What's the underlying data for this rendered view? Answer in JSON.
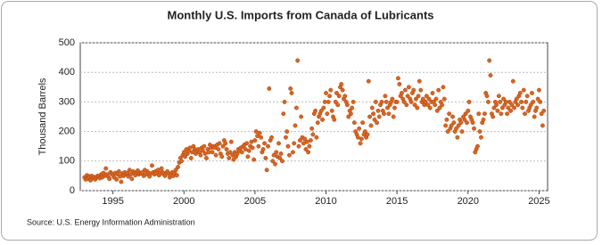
{
  "chart_data": {
    "type": "scatter",
    "title": "Monthly U.S. Imports from Canada of Lubricants",
    "y_label": "Thousand Barrels",
    "source": "Source: U.S. Energy Information Administration",
    "color": "#d9661f",
    "grid": true,
    "xlim": [
      1992.7,
      2025.6
    ],
    "xticks": [
      1995,
      2000,
      2005,
      2010,
      2015,
      2020,
      2025
    ],
    "ylim": [
      0,
      500
    ],
    "yticks": [
      0,
      100,
      200,
      300,
      400,
      500
    ],
    "x": [
      1993,
      1993.08,
      1993.17,
      1993.25,
      1993.33,
      1993.42,
      1993.5,
      1993.58,
      1993.67,
      1993.75,
      1993.83,
      1993.92,
      1994,
      1994.08,
      1994.17,
      1994.25,
      1994.33,
      1994.42,
      1994.5,
      1994.58,
      1994.67,
      1994.75,
      1994.83,
      1994.92,
      1995,
      1995.08,
      1995.17,
      1995.25,
      1995.33,
      1995.42,
      1995.5,
      1995.58,
      1995.67,
      1995.75,
      1995.83,
      1995.92,
      1996,
      1996.08,
      1996.17,
      1996.25,
      1996.33,
      1996.42,
      1996.5,
      1996.58,
      1996.67,
      1996.75,
      1996.83,
      1996.92,
      1997,
      1997.08,
      1997.17,
      1997.25,
      1997.33,
      1997.42,
      1997.5,
      1997.58,
      1997.67,
      1997.75,
      1997.83,
      1997.92,
      1998,
      1998.08,
      1998.17,
      1998.25,
      1998.33,
      1998.42,
      1998.5,
      1998.58,
      1998.67,
      1998.75,
      1998.83,
      1998.92,
      1999,
      1999.08,
      1999.17,
      1999.25,
      1999.33,
      1999.42,
      1999.5,
      1999.58,
      1999.67,
      1999.75,
      1999.83,
      1999.92,
      2000,
      2000.08,
      2000.17,
      2000.25,
      2000.33,
      2000.42,
      2000.5,
      2000.58,
      2000.67,
      2000.75,
      2000.83,
      2000.92,
      2001,
      2001.08,
      2001.17,
      2001.25,
      2001.33,
      2001.42,
      2001.5,
      2001.58,
      2001.67,
      2001.75,
      2001.83,
      2001.92,
      2002,
      2002.08,
      2002.17,
      2002.25,
      2002.33,
      2002.42,
      2002.5,
      2002.58,
      2002.67,
      2002.75,
      2002.83,
      2002.92,
      2003,
      2003.08,
      2003.17,
      2003.25,
      2003.33,
      2003.42,
      2003.5,
      2003.58,
      2003.67,
      2003.75,
      2003.83,
      2003.92,
      2004,
      2004.08,
      2004.17,
      2004.25,
      2004.33,
      2004.42,
      2004.5,
      2004.58,
      2004.67,
      2004.75,
      2004.83,
      2004.92,
      2005,
      2005.08,
      2005.17,
      2005.25,
      2005.33,
      2005.42,
      2005.5,
      2005.58,
      2005.67,
      2005.75,
      2005.83,
      2005.92,
      2006,
      2006.08,
      2006.17,
      2006.25,
      2006.33,
      2006.42,
      2006.5,
      2006.58,
      2006.67,
      2006.75,
      2006.83,
      2006.92,
      2007,
      2007.08,
      2007.17,
      2007.25,
      2007.33,
      2007.42,
      2007.5,
      2007.58,
      2007.67,
      2007.75,
      2007.83,
      2007.92,
      2008,
      2008.08,
      2008.17,
      2008.25,
      2008.33,
      2008.42,
      2008.5,
      2008.58,
      2008.67,
      2008.75,
      2008.83,
      2008.92,
      2009,
      2009.08,
      2009.17,
      2009.25,
      2009.33,
      2009.42,
      2009.5,
      2009.58,
      2009.67,
      2009.75,
      2009.83,
      2009.92,
      2010,
      2010.08,
      2010.17,
      2010.25,
      2010.33,
      2010.42,
      2010.5,
      2010.58,
      2010.67,
      2010.75,
      2010.83,
      2010.92,
      2011,
      2011.08,
      2011.17,
      2011.25,
      2011.33,
      2011.42,
      2011.5,
      2011.58,
      2011.67,
      2011.75,
      2011.83,
      2011.92,
      2012,
      2012.08,
      2012.17,
      2012.25,
      2012.33,
      2012.42,
      2012.5,
      2012.58,
      2012.67,
      2012.75,
      2012.83,
      2012.92,
      2013,
      2013.08,
      2013.17,
      2013.25,
      2013.33,
      2013.42,
      2013.5,
      2013.58,
      2013.67,
      2013.75,
      2013.83,
      2013.92,
      2014,
      2014.08,
      2014.17,
      2014.25,
      2014.33,
      2014.42,
      2014.5,
      2014.58,
      2014.67,
      2014.75,
      2014.83,
      2014.92,
      2015,
      2015.08,
      2015.17,
      2015.25,
      2015.33,
      2015.42,
      2015.5,
      2015.58,
      2015.67,
      2015.75,
      2015.83,
      2015.92,
      2016,
      2016.08,
      2016.17,
      2016.25,
      2016.33,
      2016.42,
      2016.5,
      2016.58,
      2016.67,
      2016.75,
      2016.83,
      2016.92,
      2017,
      2017.08,
      2017.17,
      2017.25,
      2017.33,
      2017.42,
      2017.5,
      2017.58,
      2017.67,
      2017.75,
      2017.83,
      2017.92,
      2018,
      2018.08,
      2018.17,
      2018.25,
      2018.33,
      2018.42,
      2018.5,
      2018.58,
      2018.67,
      2018.75,
      2018.83,
      2018.92,
      2019,
      2019.08,
      2019.17,
      2019.25,
      2019.33,
      2019.42,
      2019.5,
      2019.58,
      2019.67,
      2019.75,
      2019.83,
      2019.92,
      2020,
      2020.08,
      2020.17,
      2020.25,
      2020.33,
      2020.42,
      2020.5,
      2020.58,
      2020.67,
      2020.75,
      2020.83,
      2020.92,
      2021,
      2021.08,
      2021.17,
      2021.25,
      2021.33,
      2021.42,
      2021.5,
      2021.58,
      2021.67,
      2021.75,
      2021.83,
      2021.92,
      2022,
      2022.08,
      2022.17,
      2022.25,
      2022.33,
      2022.42,
      2022.5,
      2022.58,
      2022.67,
      2022.75,
      2022.83,
      2022.92,
      2023,
      2023.08,
      2023.17,
      2023.25,
      2023.33,
      2023.42,
      2023.5,
      2023.58,
      2023.67,
      2023.75,
      2023.83,
      2023.92,
      2024,
      2024.08,
      2024.17,
      2024.25,
      2024.33,
      2024.42,
      2024.5,
      2024.58,
      2024.67,
      2024.75,
      2024.83,
      2024.92,
      2025,
      2025.08,
      2025.17,
      2025.25,
      2025.33
    ],
    "values": [
      45,
      38,
      52,
      40,
      48,
      35,
      50,
      42,
      46,
      38,
      44,
      50,
      48,
      42,
      55,
      45,
      60,
      50,
      75,
      55,
      48,
      40,
      62,
      58,
      52,
      45,
      60,
      38,
      55,
      65,
      48,
      30,
      58,
      50,
      62,
      55,
      60,
      48,
      70,
      55,
      40,
      65,
      58,
      52,
      62,
      68,
      55,
      60,
      58,
      62,
      50,
      70,
      55,
      65,
      60,
      48,
      58,
      85,
      62,
      55,
      65,
      58,
      70,
      52,
      60,
      75,
      62,
      55,
      50,
      60,
      65,
      58,
      45,
      55,
      62,
      50,
      60,
      70,
      52,
      80,
      95,
      110,
      100,
      120,
      130,
      115,
      140,
      125,
      135,
      145,
      110,
      130,
      150,
      140,
      125,
      135,
      140,
      130,
      120,
      145,
      135,
      150,
      125,
      110,
      140,
      130,
      155,
      145,
      130,
      150,
      145,
      120,
      155,
      140,
      160,
      125,
      115,
      150,
      170,
      160,
      140,
      125,
      110,
      130,
      165,
      120,
      105,
      130,
      115,
      125,
      140,
      135,
      145,
      130,
      150,
      155,
      140,
      160,
      115,
      135,
      150,
      165,
      145,
      105,
      170,
      200,
      185,
      150,
      195,
      180,
      130,
      140,
      160,
      110,
      70,
      150,
      345,
      170,
      180,
      100,
      120,
      90,
      130,
      115,
      160,
      110,
      125,
      100,
      260,
      300,
      180,
      200,
      150,
      120,
      345,
      330,
      130,
      160,
      220,
      280,
      440,
      150,
      170,
      250,
      180,
      160,
      175,
      140,
      165,
      130,
      150,
      170,
      210,
      190,
      260,
      270,
      180,
      230,
      250,
      260,
      270,
      240,
      280,
      300,
      330,
      260,
      300,
      320,
      340,
      270,
      250,
      240,
      300,
      330,
      290,
      320,
      350,
      360,
      340,
      310,
      320,
      300,
      290,
      250,
      270,
      260,
      280,
      300,
      230,
      200,
      190,
      180,
      210,
      160,
      175,
      230,
      190,
      200,
      180,
      190,
      370,
      250,
      220,
      280,
      260,
      240,
      300,
      230,
      270,
      250,
      290,
      300,
      270,
      260,
      320,
      300,
      280,
      260,
      290,
      300,
      310,
      250,
      280,
      300,
      300,
      380,
      360,
      320,
      330,
      310,
      300,
      340,
      290,
      320,
      350,
      310,
      300,
      330,
      340,
      290,
      310,
      280,
      320,
      370,
      340,
      300,
      310,
      290,
      300,
      320,
      290,
      310,
      280,
      300,
      330,
      300,
      290,
      310,
      270,
      340,
      280,
      300,
      290,
      350,
      310,
      220,
      240,
      200,
      260,
      210,
      220,
      250,
      230,
      200,
      210,
      180,
      220,
      240,
      230,
      200,
      250,
      240,
      260,
      230,
      270,
      300,
      250,
      240,
      230,
      210,
      130,
      140,
      150,
      260,
      200,
      180,
      230,
      240,
      260,
      330,
      320,
      300,
      440,
      390,
      260,
      250,
      280,
      300,
      290,
      270,
      320,
      300,
      260,
      280,
      310,
      290,
      300,
      260,
      280,
      300,
      270,
      290,
      370,
      280,
      300,
      310,
      290,
      320,
      330,
      300,
      280,
      340,
      260,
      300,
      320,
      270,
      280,
      290,
      330,
      300,
      250,
      270,
      280,
      310,
      340,
      300,
      260,
      220,
      270
    ]
  }
}
